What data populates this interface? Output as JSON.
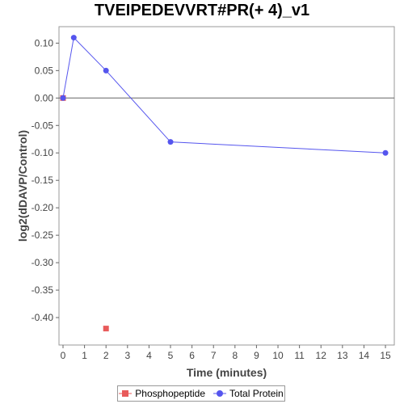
{
  "chart_data": {
    "type": "line",
    "title": "TVEIPEDEVVRT#PR(+ 4)_v1",
    "xlabel": "Time (minutes)",
    "ylabel": "log2(dDAVP/Control)",
    "xlim": [
      0,
      15.6
    ],
    "ylim": [
      -0.45,
      0.13
    ],
    "x_ticks": [
      "0",
      "1",
      "2",
      "3",
      "4",
      "5",
      "6",
      "7",
      "8",
      "9",
      "10",
      "11",
      "12",
      "13",
      "14",
      "15"
    ],
    "y_ticks": [
      "0.10",
      "0.05",
      "0.00",
      "-0.05",
      "-0.10",
      "-0.15",
      "-0.20",
      "-0.25",
      "-0.30",
      "-0.35",
      "-0.40"
    ],
    "zero_line": true,
    "legend_position": "bottom",
    "series": [
      {
        "name": "Phosphopeptide",
        "color": "#e85a5a",
        "marker": "square",
        "line": false,
        "points": [
          {
            "x": 0,
            "y": 0.0
          },
          {
            "x": 2,
            "y": -0.42
          }
        ]
      },
      {
        "name": "Total Protein",
        "color": "#5555ee",
        "marker": "circle",
        "line": true,
        "points": [
          {
            "x": 0,
            "y": 0.0
          },
          {
            "x": 0.5,
            "y": 0.11
          },
          {
            "x": 2,
            "y": 0.05
          },
          {
            "x": 5,
            "y": -0.08
          },
          {
            "x": 15,
            "y": -0.1
          }
        ]
      }
    ]
  }
}
